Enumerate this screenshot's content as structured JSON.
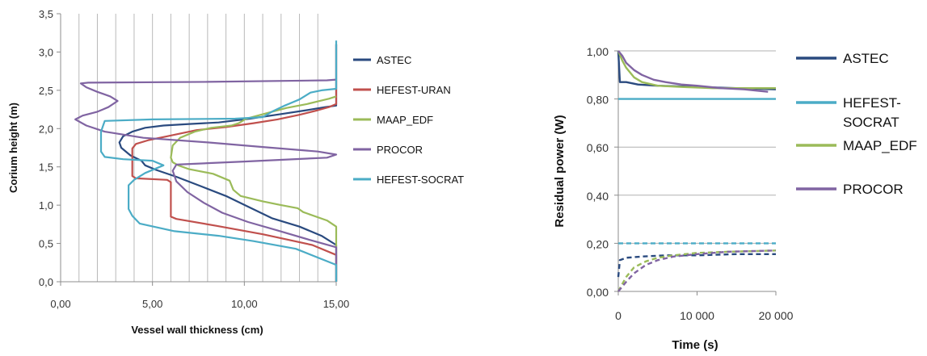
{
  "chart_data": [
    {
      "type": "line",
      "xlabel": "Vessel wall thickness (cm)",
      "ylabel": "Corium height (m)",
      "xlim": [
        0,
        15
      ],
      "ylim": [
        0,
        3.5
      ],
      "xticks": [
        "0,00",
        "5,00",
        "10,00",
        "15,00"
      ],
      "yticks": [
        "0,0",
        "0,5",
        "1,0",
        "1,5",
        "2,0",
        "2,5",
        "3,0",
        "3,5"
      ],
      "grid": "vertical",
      "legend_position": "right",
      "series": [
        {
          "name": "ASTEC",
          "color": "#2a4a7f",
          "x": [
            15.0,
            15.0,
            14.2,
            13.0,
            11.5,
            10.2,
            9.0,
            7.6,
            6.3,
            5.2,
            4.6,
            4.4,
            3.8,
            3.3,
            3.2,
            3.4,
            3.9,
            4.6,
            5.6,
            7.0,
            8.6,
            10.3,
            12.0,
            13.4,
            14.4,
            15.0,
            15.0
          ],
          "y": [
            0.0,
            0.48,
            0.6,
            0.72,
            0.83,
            0.98,
            1.12,
            1.25,
            1.37,
            1.46,
            1.52,
            1.58,
            1.65,
            1.75,
            1.82,
            1.9,
            1.96,
            2.01,
            2.04,
            2.06,
            2.08,
            2.13,
            2.19,
            2.24,
            2.28,
            2.3,
            3.1
          ]
        },
        {
          "name": "HEFEST-URAN",
          "color": "#c0504d",
          "x": [
            15.0,
            15.0,
            13.7,
            11.0,
            8.5,
            6.3,
            6.0,
            6.0,
            5.8,
            4.1,
            3.9,
            3.9,
            4.1,
            4.8,
            5.8,
            7.4,
            9.0,
            10.5,
            11.8,
            13.0,
            14.0,
            14.6,
            15.0,
            15.0
          ],
          "y": [
            0.0,
            0.35,
            0.48,
            0.62,
            0.73,
            0.82,
            0.85,
            1.3,
            1.33,
            1.35,
            1.38,
            1.74,
            1.8,
            1.85,
            1.9,
            1.98,
            2.02,
            2.07,
            2.12,
            2.18,
            2.24,
            2.28,
            2.32,
            3.1
          ]
        },
        {
          "name": "MAAP_EDF",
          "color": "#9bbb59",
          "x": [
            15.0,
            15.0,
            14.5,
            13.2,
            12.9,
            12.0,
            11.0,
            9.8,
            9.4,
            9.2,
            8.3,
            7.0,
            6.4,
            6.1,
            6.0,
            6.1,
            6.5,
            7.3,
            8.2,
            9.3,
            9.7,
            10.1,
            11.2,
            12.3,
            13.4,
            14.1,
            14.6,
            15.0
          ],
          "y": [
            0.0,
            0.72,
            0.8,
            0.91,
            0.96,
            1.0,
            1.05,
            1.12,
            1.2,
            1.32,
            1.41,
            1.47,
            1.52,
            1.56,
            1.62,
            1.78,
            1.88,
            1.96,
            2.01,
            2.04,
            2.07,
            2.13,
            2.2,
            2.27,
            2.32,
            2.36,
            2.39,
            2.42
          ]
        },
        {
          "name": "PROCOR",
          "color": "#8064a2",
          "x": [
            15.0,
            15.0,
            13.5,
            11.8,
            10.2,
            8.8,
            7.8,
            6.9,
            6.3,
            6.1,
            6.3,
            10.0,
            14.5,
            15.0,
            14.0,
            11.0,
            8.0,
            4.5,
            2.4,
            1.4,
            0.8,
            1.2,
            2.0,
            2.6,
            3.1,
            2.7,
            2.0,
            1.4,
            1.1,
            1.5,
            8.0,
            14.5,
            15.0
          ],
          "y": [
            0.0,
            0.45,
            0.55,
            0.67,
            0.78,
            0.9,
            1.03,
            1.17,
            1.31,
            1.45,
            1.53,
            1.57,
            1.62,
            1.66,
            1.7,
            1.76,
            1.82,
            1.88,
            1.96,
            2.04,
            2.12,
            2.17,
            2.22,
            2.28,
            2.36,
            2.42,
            2.48,
            2.54,
            2.59,
            2.6,
            2.61,
            2.63,
            2.64
          ]
        },
        {
          "name": "HEFEST-SOCRAT",
          "color": "#4bacc6",
          "x": [
            15.0,
            15.0,
            12.8,
            10.5,
            8.6,
            6.2,
            4.3,
            3.9,
            3.7,
            3.7,
            4.0,
            4.6,
            5.6,
            5.0,
            3.4,
            2.4,
            2.2,
            2.2,
            2.4,
            5.0,
            9.5,
            11.0,
            11.5,
            12.2,
            13.0,
            13.6,
            14.2,
            15.0,
            15.0,
            15.0
          ],
          "y": [
            0.0,
            0.22,
            0.43,
            0.53,
            0.6,
            0.66,
            0.76,
            0.86,
            0.95,
            1.26,
            1.33,
            1.42,
            1.52,
            1.58,
            1.6,
            1.63,
            1.7,
            1.96,
            2.1,
            2.12,
            2.13,
            2.15,
            2.22,
            2.3,
            2.38,
            2.47,
            2.5,
            2.52,
            2.65,
            3.15
          ]
        }
      ]
    },
    {
      "type": "line",
      "xlabel": "Time (s)",
      "ylabel": "Residual power (W)",
      "xlim": [
        0,
        20000
      ],
      "ylim": [
        0,
        1
      ],
      "xticks": [
        "0",
        "10 000",
        "20 000"
      ],
      "yticks": [
        "0,00",
        "0,20",
        "0,40",
        "0,60",
        "0,80",
        "1,00"
      ],
      "grid": "horizontal",
      "legend_position": "right",
      "series": [
        {
          "name": "ASTEC",
          "color": "#2a4a7f",
          "x": [
            0,
            200,
            1000,
            2500,
            5000,
            10000,
            15000,
            20000
          ],
          "y": [
            1.0,
            0.87,
            0.87,
            0.86,
            0.855,
            0.85,
            0.845,
            0.84
          ]
        },
        {
          "name": "HEFEST-SOCRAT",
          "color": "#4bacc6",
          "x": [
            0,
            20000
          ],
          "y": [
            0.8,
            0.8
          ]
        },
        {
          "name": "MAAP_EDF",
          "color": "#9bbb59",
          "x": [
            0,
            500,
            1000,
            2000,
            3000,
            5000,
            8000,
            12000,
            16000,
            20000
          ],
          "y": [
            1.0,
            0.96,
            0.93,
            0.89,
            0.87,
            0.855,
            0.85,
            0.845,
            0.845,
            0.845
          ]
        },
        {
          "name": "PROCOR",
          "color": "#8064a2",
          "x": [
            0,
            500,
            1000,
            2000,
            3000,
            4500,
            6000,
            8000,
            10000,
            13000,
            16000,
            19000
          ],
          "y": [
            1.0,
            0.98,
            0.95,
            0.92,
            0.9,
            0.88,
            0.87,
            0.86,
            0.855,
            0.845,
            0.84,
            0.83
          ]
        },
        {
          "color": "#2a4a7f",
          "dashed": true,
          "x": [
            0,
            200,
            1000,
            3000,
            6000,
            10000,
            15000,
            20000
          ],
          "y": [
            0.06,
            0.13,
            0.14,
            0.145,
            0.15,
            0.15,
            0.155,
            0.155
          ]
        },
        {
          "color": "#4bacc6",
          "dashed": true,
          "x": [
            0,
            20000
          ],
          "y": [
            0.2,
            0.2
          ]
        },
        {
          "color": "#9bbb59",
          "dashed": true,
          "x": [
            0,
            1000,
            2000,
            3500,
            5000,
            7000,
            10000,
            14000,
            20000
          ],
          "y": [
            0.0,
            0.06,
            0.1,
            0.125,
            0.14,
            0.15,
            0.16,
            0.165,
            0.17
          ]
        },
        {
          "color": "#8064a2",
          "dashed": true,
          "x": [
            0,
            1000,
            2000,
            3500,
            5000,
            7000,
            10000,
            14000,
            20000
          ],
          "y": [
            0.0,
            0.04,
            0.075,
            0.11,
            0.13,
            0.145,
            0.155,
            0.165,
            0.17
          ]
        }
      ]
    }
  ]
}
